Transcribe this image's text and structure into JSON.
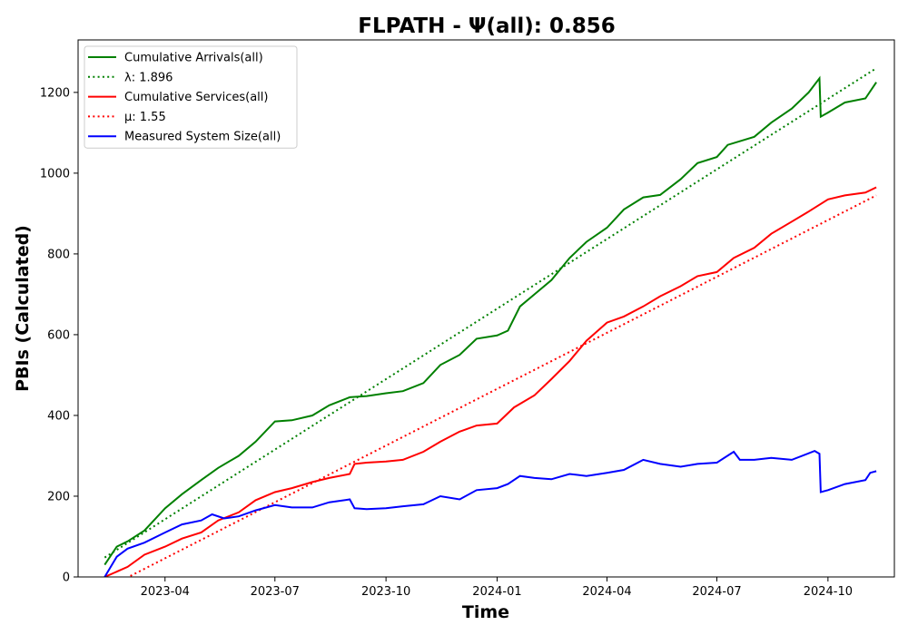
{
  "chart_data": {
    "type": "line",
    "title": "FLPATH -  Ψ(all): 0.856",
    "xlabel": "Time",
    "ylabel": "PBIs (Calculated)",
    "xlim": [
      "2023-01-19",
      "2024-11-25"
    ],
    "ylim": [
      0,
      1330
    ],
    "x_ticks": [
      "2023-04",
      "2023-07",
      "2023-10",
      "2024-01",
      "2024-04",
      "2024-07",
      "2024-10"
    ],
    "y_ticks": [
      0,
      200,
      400,
      600,
      800,
      1000,
      1200
    ],
    "grid": false,
    "legend_position": "top-left",
    "series": [
      {
        "name": "Cumulative Arrivals(all)",
        "color": "#008000",
        "style": "solid",
        "points": [
          [
            "2023-02-10",
            30
          ],
          [
            "2023-02-20",
            75
          ],
          [
            "2023-03-01",
            88
          ],
          [
            "2023-03-15",
            115
          ],
          [
            "2023-04-01",
            170
          ],
          [
            "2023-04-15",
            205
          ],
          [
            "2023-05-01",
            240
          ],
          [
            "2023-05-15",
            270
          ],
          [
            "2023-06-01",
            300
          ],
          [
            "2023-06-15",
            335
          ],
          [
            "2023-07-01",
            385
          ],
          [
            "2023-07-15",
            388
          ],
          [
            "2023-08-01",
            400
          ],
          [
            "2023-08-15",
            425
          ],
          [
            "2023-09-01",
            445
          ],
          [
            "2023-09-15",
            448
          ],
          [
            "2023-10-01",
            455
          ],
          [
            "2023-10-15",
            460
          ],
          [
            "2023-11-01",
            480
          ],
          [
            "2023-11-15",
            525
          ],
          [
            "2023-12-01",
            550
          ],
          [
            "2023-12-15",
            590
          ],
          [
            "2024-01-01",
            598
          ],
          [
            "2024-01-10",
            610
          ],
          [
            "2024-01-20",
            670
          ],
          [
            "2024-02-01",
            700
          ],
          [
            "2024-02-15",
            735
          ],
          [
            "2024-03-01",
            790
          ],
          [
            "2024-03-15",
            830
          ],
          [
            "2024-04-01",
            865
          ],
          [
            "2024-04-15",
            910
          ],
          [
            "2024-05-01",
            940
          ],
          [
            "2024-05-15",
            946
          ],
          [
            "2024-06-01",
            985
          ],
          [
            "2024-06-15",
            1025
          ],
          [
            "2024-07-01",
            1040
          ],
          [
            "2024-07-10",
            1070
          ],
          [
            "2024-08-01",
            1090
          ],
          [
            "2024-08-15",
            1125
          ],
          [
            "2024-09-01",
            1160
          ],
          [
            "2024-09-15",
            1200
          ],
          [
            "2024-09-24",
            1235
          ],
          [
            "2024-09-25",
            1140
          ],
          [
            "2024-10-01",
            1150
          ],
          [
            "2024-10-15",
            1175
          ],
          [
            "2024-11-01",
            1185
          ],
          [
            "2024-11-10",
            1225
          ]
        ]
      },
      {
        "name": "λ: 1.896",
        "color": "#008000",
        "style": "dotted",
        "points": [
          [
            "2023-02-10",
            48
          ],
          [
            "2024-11-10",
            1260
          ]
        ]
      },
      {
        "name": "Cumulative Services(all)",
        "color": "#ff0000",
        "style": "solid",
        "points": [
          [
            "2023-02-10",
            0
          ],
          [
            "2023-03-01",
            25
          ],
          [
            "2023-03-15",
            55
          ],
          [
            "2023-04-01",
            75
          ],
          [
            "2023-04-15",
            95
          ],
          [
            "2023-05-01",
            110
          ],
          [
            "2023-05-15",
            140
          ],
          [
            "2023-06-01",
            160
          ],
          [
            "2023-06-15",
            190
          ],
          [
            "2023-07-01",
            210
          ],
          [
            "2023-07-15",
            220
          ],
          [
            "2023-08-01",
            235
          ],
          [
            "2023-08-15",
            245
          ],
          [
            "2023-09-01",
            255
          ],
          [
            "2023-09-05",
            280
          ],
          [
            "2023-09-15",
            283
          ],
          [
            "2023-10-01",
            286
          ],
          [
            "2023-10-15",
            290
          ],
          [
            "2023-11-01",
            310
          ],
          [
            "2023-11-15",
            335
          ],
          [
            "2023-12-01",
            360
          ],
          [
            "2023-12-15",
            375
          ],
          [
            "2024-01-01",
            380
          ],
          [
            "2024-01-15",
            420
          ],
          [
            "2024-02-01",
            450
          ],
          [
            "2024-02-15",
            490
          ],
          [
            "2024-03-01",
            535
          ],
          [
            "2024-03-15",
            585
          ],
          [
            "2024-04-01",
            630
          ],
          [
            "2024-04-15",
            645
          ],
          [
            "2024-05-01",
            670
          ],
          [
            "2024-05-15",
            695
          ],
          [
            "2024-06-01",
            720
          ],
          [
            "2024-06-15",
            745
          ],
          [
            "2024-07-01",
            755
          ],
          [
            "2024-07-15",
            790
          ],
          [
            "2024-08-01",
            815
          ],
          [
            "2024-08-15",
            850
          ],
          [
            "2024-09-01",
            880
          ],
          [
            "2024-09-15",
            905
          ],
          [
            "2024-10-01",
            935
          ],
          [
            "2024-10-15",
            945
          ],
          [
            "2024-11-01",
            952
          ],
          [
            "2024-11-10",
            965
          ]
        ]
      },
      {
        "name": "μ: 1.55",
        "color": "#ff0000",
        "style": "dotted",
        "points": [
          [
            "2023-02-10",
            -30
          ],
          [
            "2024-11-10",
            945
          ]
        ]
      },
      {
        "name": "Measured System Size(all)",
        "color": "#0000ff",
        "style": "solid",
        "points": [
          [
            "2023-02-10",
            0
          ],
          [
            "2023-02-20",
            50
          ],
          [
            "2023-03-01",
            70
          ],
          [
            "2023-03-15",
            85
          ],
          [
            "2023-04-01",
            110
          ],
          [
            "2023-04-15",
            130
          ],
          [
            "2023-05-01",
            140
          ],
          [
            "2023-05-10",
            155
          ],
          [
            "2023-05-20",
            145
          ],
          [
            "2023-06-01",
            150
          ],
          [
            "2023-06-15",
            165
          ],
          [
            "2023-07-01",
            178
          ],
          [
            "2023-07-15",
            172
          ],
          [
            "2023-08-01",
            172
          ],
          [
            "2023-08-15",
            185
          ],
          [
            "2023-09-01",
            192
          ],
          [
            "2023-09-05",
            170
          ],
          [
            "2023-09-15",
            168
          ],
          [
            "2023-10-01",
            170
          ],
          [
            "2023-10-15",
            175
          ],
          [
            "2023-11-01",
            180
          ],
          [
            "2023-11-15",
            200
          ],
          [
            "2023-12-01",
            192
          ],
          [
            "2023-12-15",
            215
          ],
          [
            "2024-01-01",
            220
          ],
          [
            "2024-01-10",
            230
          ],
          [
            "2024-01-20",
            250
          ],
          [
            "2024-02-01",
            245
          ],
          [
            "2024-02-15",
            242
          ],
          [
            "2024-03-01",
            255
          ],
          [
            "2024-03-15",
            250
          ],
          [
            "2024-04-01",
            258
          ],
          [
            "2024-04-15",
            265
          ],
          [
            "2024-05-01",
            290
          ],
          [
            "2024-05-15",
            280
          ],
          [
            "2024-06-01",
            273
          ],
          [
            "2024-06-15",
            280
          ],
          [
            "2024-07-01",
            283
          ],
          [
            "2024-07-15",
            310
          ],
          [
            "2024-07-20",
            290
          ],
          [
            "2024-08-01",
            290
          ],
          [
            "2024-08-15",
            295
          ],
          [
            "2024-09-01",
            290
          ],
          [
            "2024-09-20",
            312
          ],
          [
            "2024-09-24",
            305
          ],
          [
            "2024-09-25",
            210
          ],
          [
            "2024-10-01",
            215
          ],
          [
            "2024-10-15",
            230
          ],
          [
            "2024-11-01",
            240
          ],
          [
            "2024-11-05",
            258
          ],
          [
            "2024-11-10",
            262
          ]
        ]
      }
    ]
  }
}
